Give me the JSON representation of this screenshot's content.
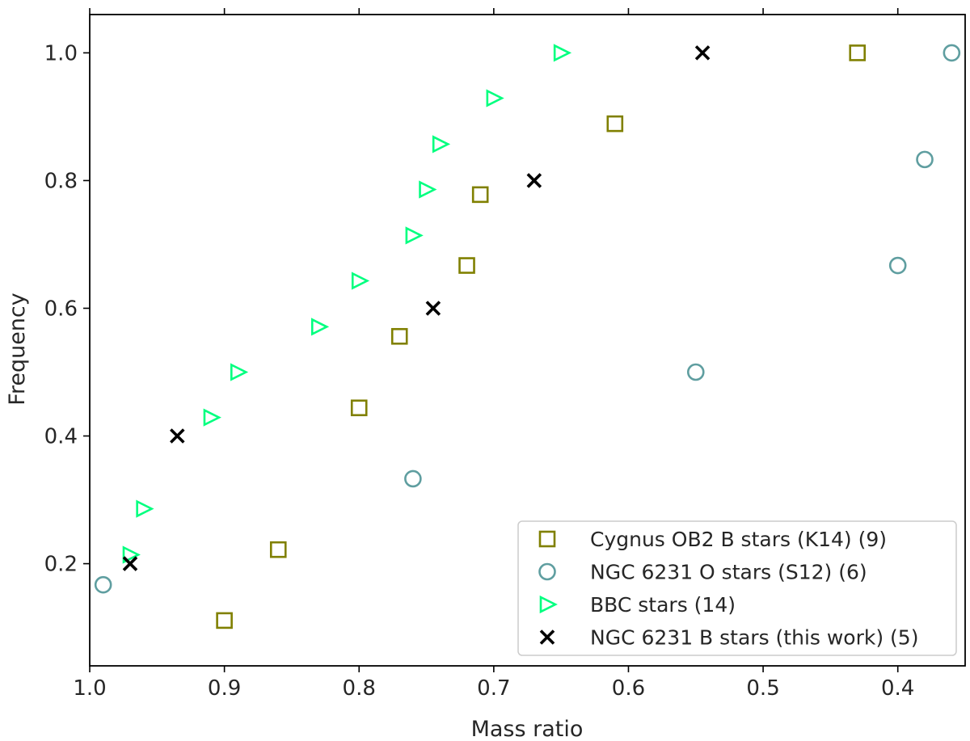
{
  "chart_data": {
    "type": "scatter",
    "title": "",
    "xlabel": "Mass ratio",
    "ylabel": "Frequency",
    "xlim": [
      1.0,
      0.35
    ],
    "ylim": [
      0.04,
      1.06
    ],
    "x_ticks": [
      1.0,
      0.9,
      0.8,
      0.7,
      0.6,
      0.5,
      0.4
    ],
    "x_tick_labels": [
      "1.0",
      "0.9",
      "0.8",
      "0.7",
      "0.6",
      "0.5",
      "0.4"
    ],
    "y_ticks": [
      0.2,
      0.4,
      0.6,
      0.8,
      1.0
    ],
    "y_tick_labels": [
      "0.2",
      "0.4",
      "0.6",
      "0.8",
      "1.0"
    ],
    "legend_position": "bottom-right",
    "grid": false,
    "series": [
      {
        "name": "Cygnus OB2 B stars (K14) (9)",
        "marker": "square",
        "color": "#808000",
        "x": [
          0.9,
          0.86,
          0.8,
          0.77,
          0.72,
          0.71,
          0.61,
          0.43
        ],
        "y": [
          0.111,
          0.222,
          0.444,
          0.556,
          0.667,
          0.778,
          0.889,
          1.0
        ]
      },
      {
        "name": "NGC 6231 O stars (S12) (6)",
        "marker": "circle",
        "color": "#5f9ea0",
        "x": [
          0.99,
          0.76,
          0.55,
          0.4,
          0.38,
          0.36
        ],
        "y": [
          0.167,
          0.333,
          0.5,
          0.667,
          0.833,
          1.0
        ]
      },
      {
        "name": "BBC stars (14)",
        "marker": "triangle-right",
        "color": "#00ff7f",
        "x": [
          0.97,
          0.96,
          0.91,
          0.89,
          0.83,
          0.8,
          0.76,
          0.75,
          0.74,
          0.7,
          0.65
        ],
        "y": [
          0.214,
          0.286,
          0.429,
          0.5,
          0.571,
          0.643,
          0.714,
          0.786,
          0.857,
          0.929,
          1.0
        ]
      },
      {
        "name": "NGC 6231 B stars (this work) (5)",
        "marker": "x",
        "color": "#000000",
        "x": [
          0.97,
          0.935,
          0.745,
          0.67,
          0.545
        ],
        "y": [
          0.2,
          0.4,
          0.6,
          0.8,
          1.0
        ]
      }
    ]
  }
}
